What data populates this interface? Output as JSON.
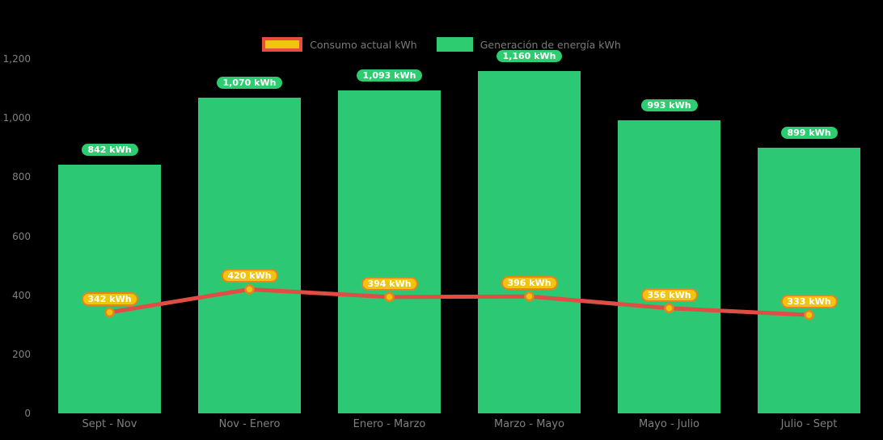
{
  "chart_data": {
    "type": "bar",
    "title": "",
    "xlabel": "",
    "ylabel": "",
    "categories": [
      "Sept - Nov",
      "Nov - Enero",
      "Enero - Marzo",
      "Marzo - Mayo",
      "Mayo - Julio",
      "Julio - Sept"
    ],
    "series": [
      {
        "name": "Consumo actual kWh",
        "type": "line",
        "values": [
          342,
          420,
          394,
          396,
          356,
          333
        ],
        "point_labels": [
          "342 kWh",
          "420 kWh",
          "394 kWh",
          "396 kWh",
          "356 kWh",
          "333 kWh"
        ]
      },
      {
        "name": "Generación de energía kWh",
        "type": "bar",
        "values": [
          842,
          1070,
          1093,
          1160,
          993,
          899
        ],
        "point_labels": [
          "842 kWh",
          "1,070 kWh",
          "1,093 kWh",
          "1,160 kWh",
          "993 kWh",
          "899 kWh"
        ]
      }
    ],
    "ylim": [
      0,
      1200
    ],
    "yticks": [
      {
        "value": 0,
        "label": "0"
      },
      {
        "value": 200,
        "label": "200"
      },
      {
        "value": 400,
        "label": "400"
      },
      {
        "value": 600,
        "label": "600"
      },
      {
        "value": 800,
        "label": "800"
      },
      {
        "value": 1000,
        "label": "1,000"
      },
      {
        "value": 1200,
        "label": "1,200"
      }
    ],
    "grid": false,
    "legend_position": "top-center"
  },
  "colors": {
    "background": "#000000",
    "bar_green": "#2dc873",
    "badge_green": "#2ecc71",
    "line_red": "#e04d45",
    "legend_swatch_red_border": "#e74c3c",
    "yellow": "#f1c40f",
    "orange": "#e8831f",
    "axis_text": "#808080",
    "legend_text": "#7a7a7a",
    "badge_text": "#ffffff"
  }
}
